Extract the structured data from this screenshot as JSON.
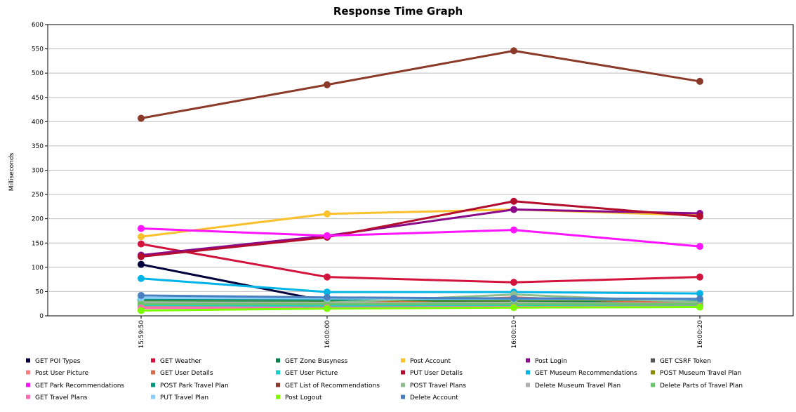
{
  "chart_data": {
    "type": "line",
    "title": "Response Time Graph",
    "xlabel": "",
    "ylabel": "Milliseconds",
    "ylim": [
      0,
      600
    ],
    "yticks": [
      0,
      50,
      100,
      150,
      200,
      250,
      300,
      350,
      400,
      450,
      500,
      550,
      600
    ],
    "categories": [
      "15:59:50",
      "16:00:00",
      "16:00:10",
      "16:00:20"
    ],
    "grid": true,
    "legend_position": "bottom",
    "series": [
      {
        "name": "GET POI Types",
        "color": "#00003d",
        "values": [
          106,
          30,
          30,
          30
        ]
      },
      {
        "name": "GET Weather",
        "color": "#d2143c",
        "values": [
          148,
          80,
          69,
          80
        ]
      },
      {
        "name": "GET Zone Busyness",
        "color": "#00834a",
        "values": [
          30,
          29,
          30,
          29
        ]
      },
      {
        "name": "Post Account",
        "color": "#fbc02d",
        "values": [
          163,
          210,
          219,
          207
        ]
      },
      {
        "name": "Post Login",
        "color": "#8b0a8b",
        "values": [
          125,
          165,
          219,
          211
        ]
      },
      {
        "name": "GET CSRF Token",
        "color": "#555555",
        "values": [
          35,
          34,
          34,
          33
        ]
      },
      {
        "name": "Post User Picture",
        "color": "#ff7f7f",
        "values": [
          20,
          21,
          22,
          21
        ]
      },
      {
        "name": "GET User Details",
        "color": "#d96a4a",
        "values": [
          23,
          24,
          38,
          25
        ]
      },
      {
        "name": "GET User Picture",
        "color": "#14d2c8",
        "values": [
          22,
          21,
          20,
          22
        ]
      },
      {
        "name": "PUT User Details",
        "color": "#b30e2e",
        "values": [
          122,
          162,
          236,
          205
        ]
      },
      {
        "name": "GET Museum Recommendations",
        "color": "#00b4e6",
        "values": [
          77,
          49,
          49,
          46
        ]
      },
      {
        "name": "POST Museum Travel Plan",
        "color": "#8c8c00",
        "values": [
          33,
          32,
          32,
          33
        ]
      },
      {
        "name": "GET Park Recommendations",
        "color": "#ff14ff",
        "values": [
          180,
          165,
          177,
          143
        ]
      },
      {
        "name": "POST Park Travel Plan",
        "color": "#009682",
        "values": [
          34,
          33,
          34,
          33
        ]
      },
      {
        "name": "GET List of Recommendations",
        "color": "#8b3a2a",
        "values": [
          407,
          476,
          546,
          483
        ]
      },
      {
        "name": "POST Travel Plans",
        "color": "#8fbc8f",
        "values": [
          28,
          27,
          44,
          28
        ]
      },
      {
        "name": "Delete Museum Travel Plan",
        "color": "#b0b0b0",
        "values": [
          26,
          26,
          27,
          25
        ]
      },
      {
        "name": "Delete Parts of Travel Plan",
        "color": "#6ac46a",
        "values": [
          24,
          24,
          24,
          24
        ]
      },
      {
        "name": "GET Travel Plans",
        "color": "#ff6eb4",
        "values": [
          16,
          17,
          18,
          19
        ]
      },
      {
        "name": "PUT Travel Plan",
        "color": "#87cefa",
        "values": [
          37,
          36,
          35,
          34
        ]
      },
      {
        "name": "Post Logout",
        "color": "#7cfc00",
        "values": [
          11,
          15,
          17,
          18
        ]
      },
      {
        "name": "Delete Account",
        "color": "#4a7fc0",
        "values": [
          42,
          38,
          36,
          35
        ]
      }
    ]
  }
}
